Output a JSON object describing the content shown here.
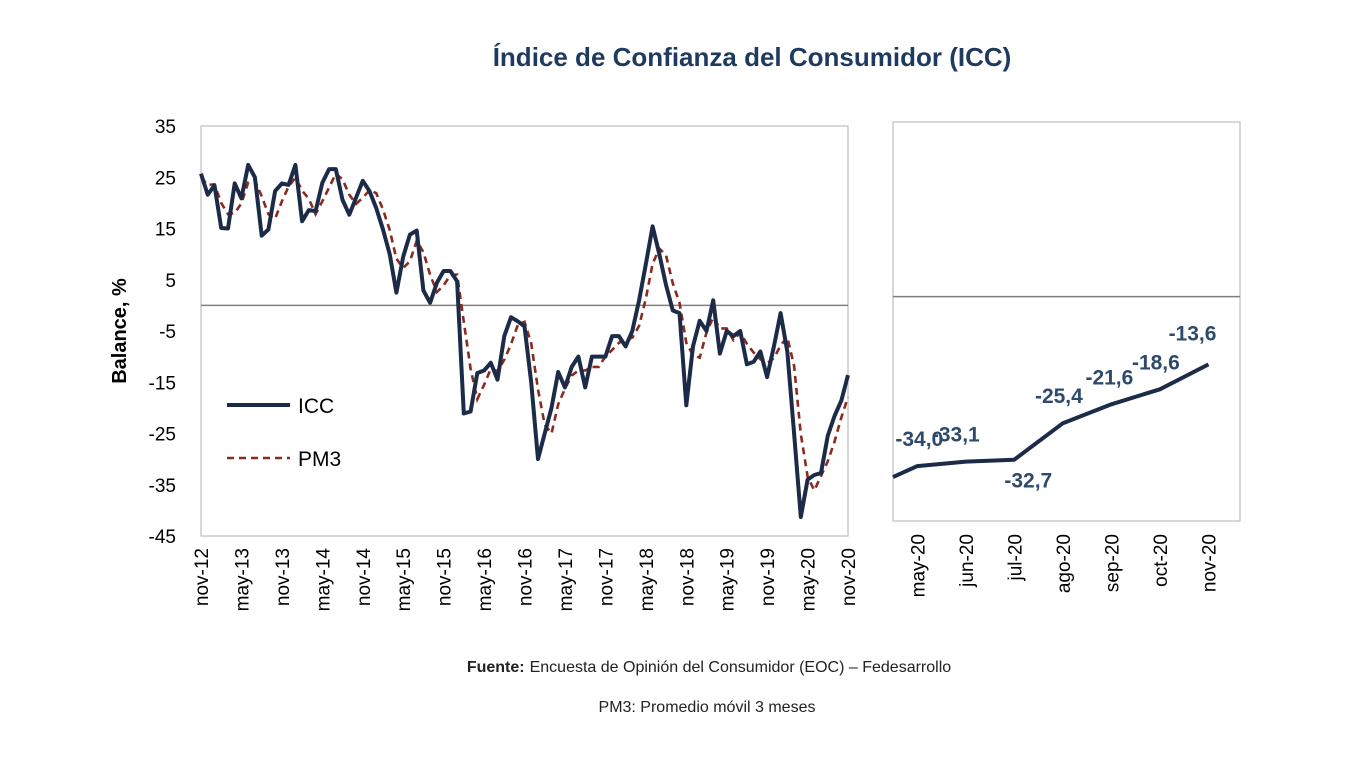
{
  "title": "Índice de Confianza del Consumidor (ICC)",
  "colors": {
    "icc": "#1c2b48",
    "pm3": "#8b2a1f",
    "title": "#1f3a5f",
    "labels": "#2e4a6b"
  },
  "footer": {
    "source_label": "Fuente:",
    "source_text": "Encuesta de Opinión del Consumidor (EOC) – Fedesarrollo",
    "note": "PM3: Promedio móvil 3 meses"
  },
  "chart_data": [
    {
      "type": "line",
      "ylabel": "Balance, %",
      "ylim": [
        -45,
        35
      ],
      "yticks": [
        35,
        25,
        15,
        5,
        -5,
        -15,
        -25,
        -35,
        -45
      ],
      "xtick_labels": [
        "nov-12",
        "may-13",
        "nov-13",
        "may-14",
        "nov-14",
        "may-15",
        "nov-15",
        "may-16",
        "nov-16",
        "may-17",
        "nov-17",
        "may-18",
        "nov-18",
        "may-19",
        "nov-19",
        "may-20",
        "nov-20"
      ],
      "legend": [
        "ICC",
        "PM3"
      ],
      "series": [
        {
          "name": "ICC",
          "values": [
            25.7,
            21.6,
            23.4,
            15.1,
            15.0,
            23.8,
            20.9,
            27.4,
            25.0,
            13.6,
            14.8,
            22.3,
            23.8,
            23.5,
            27.4,
            16.4,
            18.6,
            18.4,
            23.9,
            26.6,
            26.6,
            20.6,
            17.7,
            21.0,
            24.3,
            22.3,
            19.0,
            14.8,
            10.0,
            2.5,
            9.5,
            13.8,
            14.6,
            2.9,
            0.5,
            4.4,
            6.7,
            6.7,
            4.7,
            -21.1,
            -20.7,
            -13.2,
            -12.7,
            -11.2,
            -14.5,
            -6.0,
            -2.3,
            -3.1,
            -4.1,
            -15.0,
            -30.0,
            -25.0,
            -20.0,
            -13.0,
            -16.0,
            -12.0,
            -10.0,
            -16.0,
            -10.0,
            -10.0,
            -10.0,
            -6.0,
            -6.0,
            -8.0,
            -5.0,
            1.0,
            8.0,
            15.4,
            10.0,
            4.0,
            -1.0,
            -1.5,
            -19.5,
            -8.0,
            -3.0,
            -5.0,
            1.0,
            -9.4,
            -5.0,
            -6.0,
            -5.0,
            -11.5,
            -11.0,
            -9.0,
            -14.0,
            -8.0,
            -1.5,
            -9.0,
            -25.0,
            -41.3,
            -34.0,
            -33.1,
            -32.7,
            -25.4,
            -21.6,
            -18.6,
            -13.6
          ]
        },
        {
          "name": "PM3",
          "values": [
            25.0,
            23.5,
            23.6,
            20.0,
            17.8,
            18.0,
            19.9,
            24.0,
            24.4,
            21.3,
            17.8,
            16.9,
            20.3,
            23.2,
            24.9,
            22.4,
            20.8,
            17.8,
            20.3,
            23.0,
            25.7,
            24.6,
            21.6,
            19.8,
            21.0,
            22.5,
            21.9,
            18.7,
            14.7,
            9.1,
            7.3,
            8.6,
            12.6,
            10.4,
            6.0,
            2.6,
            3.9,
            5.9,
            6.0,
            -3.2,
            -12.4,
            -18.3,
            -15.5,
            -12.4,
            -12.8,
            -10.6,
            -7.6,
            -3.8,
            -3.2,
            -7.4,
            -16.4,
            -23.3,
            -25.0,
            -19.3,
            -16.3,
            -13.7,
            -12.7,
            -12.7,
            -12.0,
            -12.0,
            -10.0,
            -8.7,
            -7.3,
            -6.7,
            -6.3,
            -4.0,
            1.3,
            8.1,
            11.1,
            9.8,
            4.3,
            0.5,
            -7.3,
            -9.7,
            -10.2,
            -5.3,
            -2.3,
            -4.5,
            -4.5,
            -6.8,
            -5.3,
            -7.5,
            -9.2,
            -10.5,
            -11.3,
            -10.3,
            -7.8,
            -6.2,
            -11.8,
            -25.1,
            -33.4,
            -36.1,
            -33.3,
            -30.4,
            -26.6,
            -21.9,
            -17.9
          ]
        }
      ]
    },
    {
      "type": "line",
      "categories": [
        "may-20",
        "jun-20",
        "jul-20",
        "ago-20",
        "sep-20",
        "oct-20",
        "nov-20"
      ],
      "series": [
        {
          "name": "ICC",
          "values": [
            -34.0,
            -33.1,
            -32.7,
            -25.4,
            -21.6,
            -18.6,
            -13.6
          ]
        }
      ],
      "data_labels": [
        "-34,0",
        "-33,1",
        "-32,7",
        "-25,4",
        "-21,6",
        "-18,6",
        "-13,6"
      ]
    }
  ]
}
